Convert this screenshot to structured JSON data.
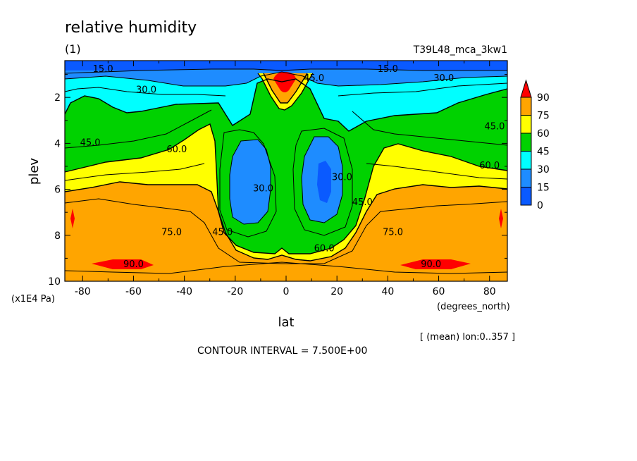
{
  "header": {
    "title": "relative humidity",
    "subtitle": "(1)",
    "run_id": "T39L48_mca_3kw1"
  },
  "footer": {
    "mean_note": "[ (mean) lon:0..357 ]",
    "contour_interval": "CONTOUR INTERVAL = 7.500E+00"
  },
  "chart_data": {
    "type": "heatmap",
    "title": "relative humidity",
    "subtitle": "(1)",
    "xlabel": "lat",
    "xunits": "(degrees_north)",
    "ylabel": "plev",
    "yunits": "(x1E4 Pa)",
    "xlim": [
      -87,
      87
    ],
    "ylim": [
      10,
      0.4
    ],
    "y_reversed": true,
    "x_ticks": [
      -80,
      -60,
      -40,
      -20,
      0,
      20,
      40,
      60,
      80
    ],
    "y_ticks": [
      2,
      4,
      6,
      8,
      10
    ],
    "contour_interval": 7.5,
    "colorbar": {
      "levels": [
        0,
        15,
        30,
        45,
        60,
        75,
        90
      ],
      "colors": [
        "#0a5aff",
        "#1e8cff",
        "#00ffff",
        "#00d200",
        "#ffff00",
        "#ffa500",
        "#ff0000"
      ],
      "extend": "max"
    },
    "contour_labels": [
      {
        "text": "15.0",
        "lat": -72,
        "plev": 0.8
      },
      {
        "text": "30.0",
        "lat": -55,
        "plev": 1.7
      },
      {
        "text": "45.0",
        "lat": -77,
        "plev": 4.0
      },
      {
        "text": "60.0",
        "lat": -43,
        "plev": 4.3
      },
      {
        "text": "75.0",
        "lat": -45,
        "plev": 7.9
      },
      {
        "text": "90.0",
        "lat": -60,
        "plev": 9.3
      },
      {
        "text": "30.0",
        "lat": -9,
        "plev": 6.0
      },
      {
        "text": "45.0",
        "lat": -25,
        "plev": 7.9
      },
      {
        "text": "45.0",
        "lat": 11,
        "plev": 1.2
      },
      {
        "text": "30.0",
        "lat": 22,
        "plev": 5.5
      },
      {
        "text": "45.0",
        "lat": 30,
        "plev": 6.6
      },
      {
        "text": "60.0",
        "lat": 15,
        "plev": 8.6
      },
      {
        "text": "15.0",
        "lat": 40,
        "plev": 0.8
      },
      {
        "text": "30.0",
        "lat": 62,
        "plev": 1.2
      },
      {
        "text": "45.0",
        "lat": 82,
        "plev": 3.3
      },
      {
        "text": "60.0",
        "lat": 80,
        "plev": 5.0
      },
      {
        "text": "75.0",
        "lat": 42,
        "plev": 7.9
      },
      {
        "text": "90.0",
        "lat": 57,
        "plev": 9.3
      }
    ]
  }
}
